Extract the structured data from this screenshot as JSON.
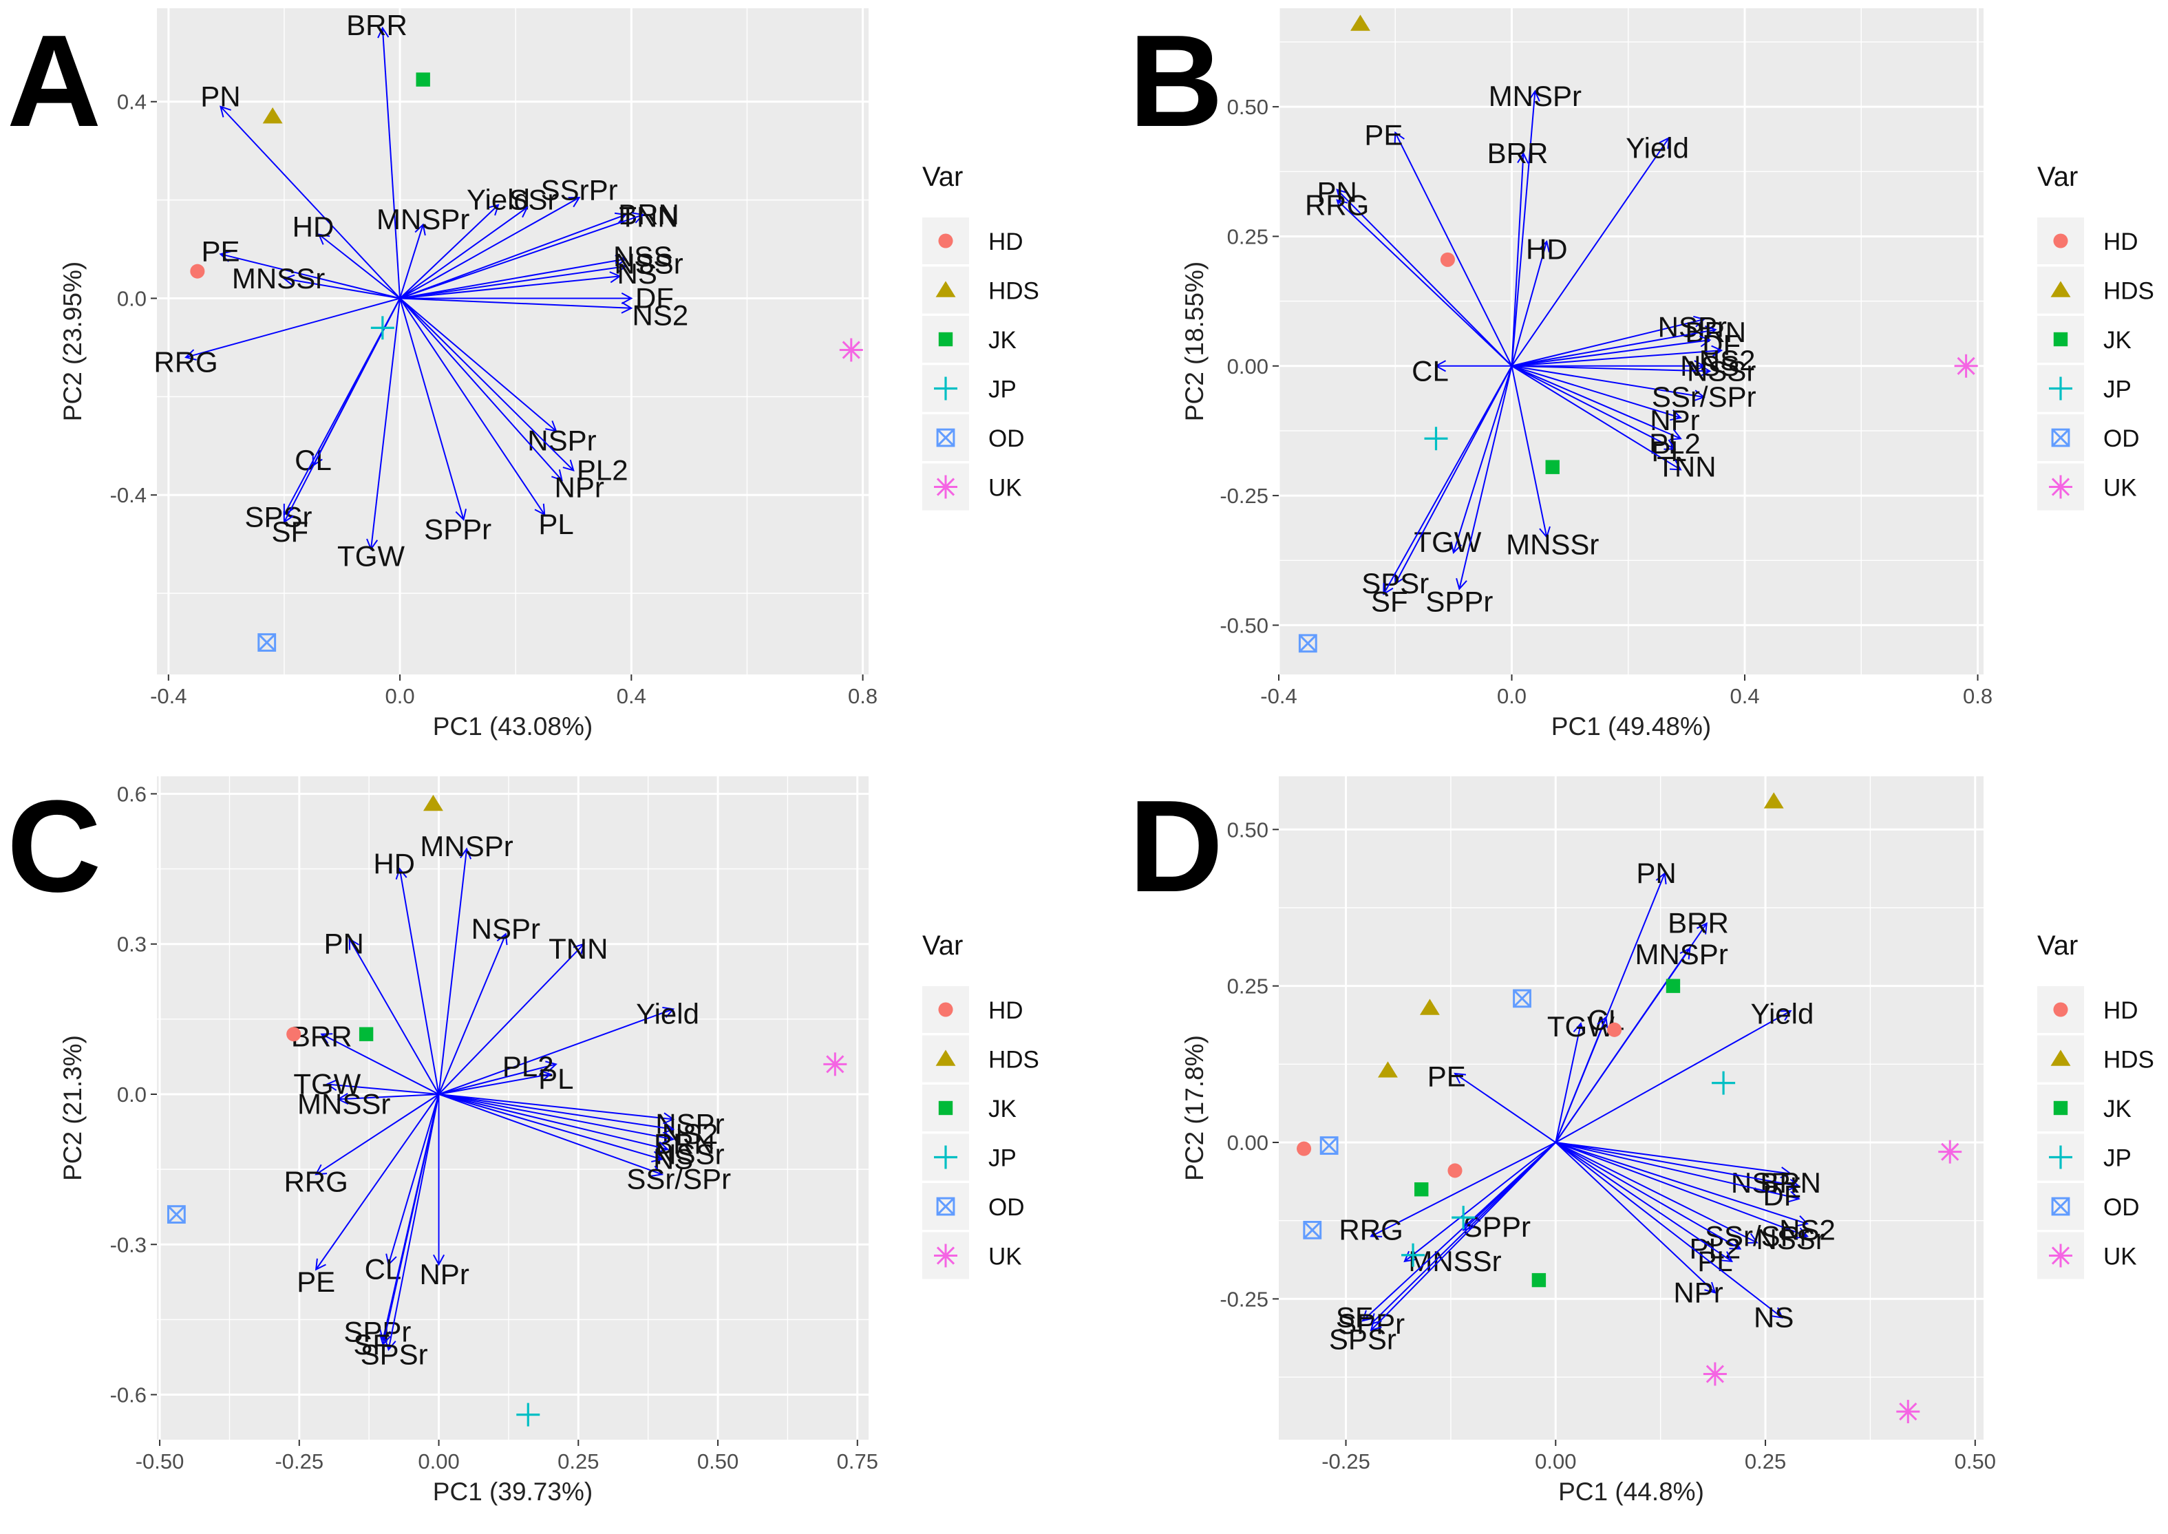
{
  "legend": {
    "title": "Var",
    "groups": [
      "HD",
      "HDS",
      "JK",
      "JP",
      "OD",
      "UK"
    ],
    "colors": {
      "HD": "#F8766D",
      "HDS": "#B79F00",
      "JK": "#00BA38",
      "JP": "#00BFC4",
      "OD": "#619CFF",
      "UK": "#F564E3"
    },
    "shapes": {
      "HD": "circle",
      "HDS": "triangle",
      "JK": "square",
      "JP": "plus",
      "OD": "boxed-x",
      "UK": "asterisk"
    }
  },
  "arrow_color": "#0000FF",
  "chart_data": [
    {
      "panel": "A",
      "type": "scatter",
      "subtype": "pca-biplot",
      "xlabel": "PC1 (43.08%)",
      "ylabel": "PC2 (23.95%)",
      "xlim": [
        -0.42,
        0.81
      ],
      "ylim": [
        -0.765,
        0.59
      ],
      "xticks": [
        -0.4,
        0.0,
        0.4,
        0.8
      ],
      "yticks": [
        -0.4,
        0.0,
        0.4
      ],
      "xtick_labels": [
        "-0.4",
        "0.0",
        "0.4",
        "0.8"
      ],
      "ytick_labels": [
        "-0.4",
        "0.0",
        "0.4"
      ],
      "grid": true,
      "legend_position": "right",
      "points": [
        {
          "group": "HD",
          "x": -0.35,
          "y": 0.055
        },
        {
          "group": "HDS",
          "x": -0.22,
          "y": 0.37
        },
        {
          "group": "JK",
          "x": 0.04,
          "y": 0.445
        },
        {
          "group": "JP",
          "x": -0.03,
          "y": -0.06
        },
        {
          "group": "OD",
          "x": -0.23,
          "y": -0.7
        },
        {
          "group": "UK",
          "x": 0.78,
          "y": -0.105
        }
      ],
      "arrows": [
        {
          "label": "BRR",
          "x": -0.03,
          "y": 0.55,
          "lx": -0.04,
          "ly": 0.555
        },
        {
          "label": "PN",
          "x": -0.31,
          "y": 0.39,
          "lx": -0.31,
          "ly": 0.41
        },
        {
          "label": "HD",
          "x": -0.14,
          "y": 0.13,
          "lx": -0.15,
          "ly": 0.145
        },
        {
          "label": "PE",
          "x": -0.31,
          "y": 0.09,
          "lx": -0.31,
          "ly": 0.095
        },
        {
          "label": "MNSSr",
          "x": -0.2,
          "y": 0.04,
          "lx": -0.21,
          "ly": 0.04
        },
        {
          "label": "RRG",
          "x": -0.37,
          "y": -0.12,
          "lx": -0.37,
          "ly": -0.13
        },
        {
          "label": "MNSPr",
          "x": 0.04,
          "y": 0.15,
          "lx": 0.04,
          "ly": 0.16
        },
        {
          "label": "Yield",
          "x": 0.17,
          "y": 0.19,
          "lx": 0.17,
          "ly": 0.2
        },
        {
          "label": "SSr",
          "x": 0.22,
          "y": 0.185,
          "lx": 0.23,
          "ly": 0.2
        },
        {
          "label": "SSrPr",
          "x": 0.31,
          "y": 0.205,
          "lx": 0.31,
          "ly": 0.22
        },
        {
          "label": "BRN",
          "x": 0.39,
          "y": 0.17,
          "lx": 0.43,
          "ly": 0.17
        },
        {
          "label": "TNN",
          "x": 0.42,
          "y": 0.17,
          "lx": 0.43,
          "ly": 0.165
        },
        {
          "label": "NSS",
          "x": 0.39,
          "y": 0.08,
          "lx": 0.42,
          "ly": 0.085
        },
        {
          "label": "NSSr",
          "x": 0.39,
          "y": 0.065,
          "lx": 0.43,
          "ly": 0.07
        },
        {
          "label": "NS",
          "x": 0.38,
          "y": 0.045,
          "lx": 0.41,
          "ly": 0.05
        },
        {
          "label": "DF",
          "x": 0.4,
          "y": 0.0,
          "lx": 0.44,
          "ly": 0.0
        },
        {
          "label": "NS2",
          "x": 0.4,
          "y": -0.02,
          "lx": 0.45,
          "ly": -0.035
        },
        {
          "label": "NSPr",
          "x": 0.27,
          "y": -0.27,
          "lx": 0.28,
          "ly": -0.29
        },
        {
          "label": "PL2",
          "x": 0.3,
          "y": -0.35,
          "lx": 0.35,
          "ly": -0.35
        },
        {
          "label": "NPr",
          "x": 0.28,
          "y": -0.37,
          "lx": 0.31,
          "ly": -0.385
        },
        {
          "label": "PL",
          "x": 0.25,
          "y": -0.44,
          "lx": 0.27,
          "ly": -0.46
        },
        {
          "label": "SPPr",
          "x": 0.11,
          "y": -0.45,
          "lx": 0.1,
          "ly": -0.47
        },
        {
          "label": "TGW",
          "x": -0.05,
          "y": -0.51,
          "lx": -0.05,
          "ly": -0.525
        },
        {
          "label": "CL",
          "x": -0.15,
          "y": -0.34,
          "lx": -0.15,
          "ly": -0.33
        },
        {
          "label": "SPSr",
          "x": -0.2,
          "y": -0.44,
          "lx": -0.21,
          "ly": -0.445
        },
        {
          "label": "SF",
          "x": -0.2,
          "y": -0.455,
          "lx": -0.19,
          "ly": -0.475
        }
      ]
    },
    {
      "panel": "B",
      "type": "scatter",
      "subtype": "pca-biplot",
      "xlabel": "PC1 (49.48%)",
      "ylabel": "PC2 (18.55%)",
      "xlim": [
        -0.4,
        0.81
      ],
      "ylim": [
        -0.595,
        0.69
      ],
      "xticks": [
        -0.4,
        0.0,
        0.4,
        0.8
      ],
      "yticks": [
        -0.5,
        -0.25,
        0.0,
        0.25,
        0.5
      ],
      "xtick_labels": [
        "-0.4",
        "0.0",
        "0.4",
        "0.8"
      ],
      "ytick_labels": [
        "-0.50",
        "-0.25",
        "0.00",
        "0.25",
        "0.50"
      ],
      "grid": true,
      "legend_position": "right",
      "points": [
        {
          "group": "HD",
          "x": -0.11,
          "y": 0.205
        },
        {
          "group": "HDS",
          "x": -0.26,
          "y": 0.66
        },
        {
          "group": "JK",
          "x": 0.07,
          "y": -0.195
        },
        {
          "group": "JP",
          "x": -0.13,
          "y": -0.14
        },
        {
          "group": "OD",
          "x": -0.35,
          "y": -0.535
        },
        {
          "group": "UK",
          "x": 0.78,
          "y": 0.0
        }
      ],
      "arrows": [
        {
          "label": "MNSPr",
          "x": 0.04,
          "y": 0.53,
          "lx": 0.04,
          "ly": 0.52
        },
        {
          "label": "PE",
          "x": -0.2,
          "y": 0.45,
          "lx": -0.22,
          "ly": 0.445
        },
        {
          "label": "BRR",
          "x": 0.02,
          "y": 0.41,
          "lx": 0.01,
          "ly": 0.41
        },
        {
          "label": "Yield",
          "x": 0.27,
          "y": 0.44,
          "lx": 0.25,
          "ly": 0.42
        },
        {
          "label": "PN",
          "x": -0.3,
          "y": 0.34,
          "lx": -0.3,
          "ly": 0.335
        },
        {
          "label": "RRG",
          "x": -0.3,
          "y": 0.32,
          "lx": -0.3,
          "ly": 0.31
        },
        {
          "label": "HD",
          "x": 0.06,
          "y": 0.24,
          "lx": 0.06,
          "ly": 0.225
        },
        {
          "label": "CL",
          "x": -0.13,
          "y": 0.0,
          "lx": -0.14,
          "ly": -0.01
        },
        {
          "label": "NSPr",
          "x": 0.33,
          "y": 0.09,
          "lx": 0.31,
          "ly": 0.075
        },
        {
          "label": "BRN",
          "x": 0.35,
          "y": 0.07,
          "lx": 0.35,
          "ly": 0.065
        },
        {
          "label": "DF",
          "x": 0.34,
          "y": 0.05,
          "lx": 0.36,
          "ly": 0.04
        },
        {
          "label": "NS2",
          "x": 0.36,
          "y": 0.03,
          "lx": 0.37,
          "ly": 0.01
        },
        {
          "label": "NSS",
          "x": 0.33,
          "y": 0.0,
          "lx": 0.34,
          "ly": 0.0
        },
        {
          "label": "NSSr",
          "x": 0.34,
          "y": -0.01,
          "lx": 0.36,
          "ly": -0.01
        },
        {
          "label": "SSr/SPr",
          "x": 0.33,
          "y": -0.06,
          "lx": 0.33,
          "ly": -0.06
        },
        {
          "label": "NPr",
          "x": 0.29,
          "y": -0.1,
          "lx": 0.28,
          "ly": -0.105
        },
        {
          "label": "PL2",
          "x": 0.29,
          "y": -0.14,
          "lx": 0.28,
          "ly": -0.15
        },
        {
          "label": "PL",
          "x": 0.28,
          "y": -0.16,
          "lx": 0.27,
          "ly": -0.165
        },
        {
          "label": "TNN",
          "x": 0.29,
          "y": -0.2,
          "lx": 0.3,
          "ly": -0.195
        },
        {
          "label": "MNSSr",
          "x": 0.06,
          "y": -0.33,
          "lx": 0.07,
          "ly": -0.345
        },
        {
          "label": "TGW",
          "x": -0.1,
          "y": -0.36,
          "lx": -0.11,
          "ly": -0.34
        },
        {
          "label": "SPSr",
          "x": -0.2,
          "y": -0.42,
          "lx": -0.2,
          "ly": -0.42
        },
        {
          "label": "SF",
          "x": -0.22,
          "y": -0.44,
          "lx": -0.21,
          "ly": -0.455
        },
        {
          "label": "SPPr",
          "x": -0.09,
          "y": -0.43,
          "lx": -0.09,
          "ly": -0.455
        }
      ]
    },
    {
      "panel": "C",
      "type": "scatter",
      "subtype": "pca-biplot",
      "xlabel": "PC1 (39.73%)",
      "ylabel": "PC2 (21.3%)",
      "xlim": [
        -0.505,
        0.77
      ],
      "ylim": [
        -0.69,
        0.635
      ],
      "xticks": [
        -0.5,
        -0.25,
        0.0,
        0.25,
        0.5,
        0.75
      ],
      "yticks": [
        -0.6,
        -0.3,
        0.0,
        0.3,
        0.6
      ],
      "xtick_labels": [
        "-0.50",
        "-0.25",
        "0.00",
        "0.25",
        "0.50",
        "0.75"
      ],
      "ytick_labels": [
        "-0.6",
        "-0.3",
        "0.0",
        "0.3",
        "0.6"
      ],
      "grid": true,
      "legend_position": "right",
      "points": [
        {
          "group": "HD",
          "x": -0.26,
          "y": 0.12
        },
        {
          "group": "HDS",
          "x": -0.01,
          "y": 0.58
        },
        {
          "group": "JK",
          "x": -0.13,
          "y": 0.12
        },
        {
          "group": "JP",
          "x": 0.16,
          "y": -0.64
        },
        {
          "group": "OD",
          "x": -0.47,
          "y": -0.24
        },
        {
          "group": "UK",
          "x": 0.71,
          "y": 0.06
        }
      ],
      "arrows": [
        {
          "label": "MNSPr",
          "x": 0.05,
          "y": 0.49,
          "lx": 0.05,
          "ly": 0.495
        },
        {
          "label": "HD",
          "x": -0.07,
          "y": 0.45,
          "lx": -0.08,
          "ly": 0.46
        },
        {
          "label": "NSPr",
          "x": 0.12,
          "y": 0.32,
          "lx": 0.12,
          "ly": 0.33
        },
        {
          "label": "TNN",
          "x": 0.26,
          "y": 0.3,
          "lx": 0.25,
          "ly": 0.29
        },
        {
          "label": "PN",
          "x": -0.16,
          "y": 0.31,
          "lx": -0.17,
          "ly": 0.3
        },
        {
          "label": "Yield",
          "x": 0.42,
          "y": 0.17,
          "lx": 0.41,
          "ly": 0.16
        },
        {
          "label": "BRR",
          "x": -0.21,
          "y": 0.12,
          "lx": -0.21,
          "ly": 0.115
        },
        {
          "label": "PL2",
          "x": 0.21,
          "y": 0.06,
          "lx": 0.16,
          "ly": 0.055
        },
        {
          "label": "PL",
          "x": 0.2,
          "y": 0.04,
          "lx": 0.21,
          "ly": 0.03
        },
        {
          "label": "TGW",
          "x": -0.2,
          "y": 0.02,
          "lx": -0.2,
          "ly": 0.02
        },
        {
          "label": "MNSSr",
          "x": -0.18,
          "y": -0.01,
          "lx": -0.17,
          "ly": -0.02
        },
        {
          "label": "NSPr",
          "x": 0.42,
          "y": -0.05,
          "lx": 0.45,
          "ly": -0.06
        },
        {
          "label": "NS2",
          "x": 0.42,
          "y": -0.07,
          "lx": 0.45,
          "ly": -0.08
        },
        {
          "label": "BRN",
          "x": 0.42,
          "y": -0.09,
          "lx": 0.44,
          "ly": -0.1
        },
        {
          "label": "NSSr",
          "x": 0.41,
          "y": -0.11,
          "lx": 0.45,
          "ly": -0.12
        },
        {
          "label": "NS",
          "x": 0.4,
          "y": -0.13,
          "lx": 0.42,
          "ly": -0.13
        },
        {
          "label": "SSr/SPr",
          "x": 0.4,
          "y": -0.16,
          "lx": 0.43,
          "ly": -0.17
        },
        {
          "label": "RRG",
          "x": -0.22,
          "y": -0.16,
          "lx": -0.22,
          "ly": -0.175
        },
        {
          "label": "PE",
          "x": -0.22,
          "y": -0.35,
          "lx": -0.22,
          "ly": -0.375
        },
        {
          "label": "CL",
          "x": -0.09,
          "y": -0.34,
          "lx": -0.1,
          "ly": -0.35
        },
        {
          "label": "NPr",
          "x": 0.0,
          "y": -0.34,
          "lx": 0.01,
          "ly": -0.36
        },
        {
          "label": "SPPr",
          "x": -0.1,
          "y": -0.49,
          "lx": -0.11,
          "ly": -0.475
        },
        {
          "label": "SF",
          "x": -0.1,
          "y": -0.5,
          "lx": -0.12,
          "ly": -0.5
        },
        {
          "label": "SPSr",
          "x": -0.09,
          "y": -0.51,
          "lx": -0.08,
          "ly": -0.52
        }
      ]
    },
    {
      "panel": "D",
      "type": "scatter",
      "subtype": "pca-biplot",
      "xlabel": "PC1 (44.8%)",
      "ylabel": "PC2 (17.8%)",
      "xlim": [
        -0.33,
        0.51
      ],
      "ylim": [
        -0.475,
        0.585
      ],
      "xticks": [
        -0.25,
        0.0,
        0.25,
        0.5
      ],
      "yticks": [
        -0.25,
        0.0,
        0.25,
        0.5
      ],
      "xtick_labels": [
        "-0.25",
        "0.00",
        "0.25",
        "0.50"
      ],
      "ytick_labels": [
        "-0.25",
        "0.00",
        "0.25",
        "0.50"
      ],
      "grid": true,
      "legend_position": "right",
      "points": [
        {
          "group": "HD",
          "x": -0.3,
          "y": -0.01
        },
        {
          "group": "HD",
          "x": -0.12,
          "y": -0.045
        },
        {
          "group": "HD",
          "x": 0.07,
          "y": 0.18
        },
        {
          "group": "HDS",
          "x": 0.26,
          "y": 0.545
        },
        {
          "group": "HDS",
          "x": -0.15,
          "y": 0.215
        },
        {
          "group": "HDS",
          "x": -0.2,
          "y": 0.115
        },
        {
          "group": "JK",
          "x": 0.14,
          "y": 0.25
        },
        {
          "group": "JK",
          "x": -0.16,
          "y": -0.075
        },
        {
          "group": "JK",
          "x": -0.02,
          "y": -0.22
        },
        {
          "group": "JP",
          "x": 0.2,
          "y": 0.095
        },
        {
          "group": "JP",
          "x": -0.11,
          "y": -0.12
        },
        {
          "group": "JP",
          "x": -0.17,
          "y": -0.18
        },
        {
          "group": "OD",
          "x": -0.27,
          "y": -0.005
        },
        {
          "group": "OD",
          "x": -0.29,
          "y": -0.14
        },
        {
          "group": "OD",
          "x": -0.04,
          "y": 0.23
        },
        {
          "group": "UK",
          "x": 0.47,
          "y": -0.015
        },
        {
          "group": "UK",
          "x": 0.42,
          "y": -0.43
        },
        {
          "group": "UK",
          "x": 0.19,
          "y": -0.37
        }
      ],
      "arrows": [
        {
          "label": "PN",
          "x": 0.13,
          "y": 0.43,
          "lx": 0.12,
          "ly": 0.43
        },
        {
          "label": "BRR",
          "x": 0.18,
          "y": 0.35,
          "lx": 0.17,
          "ly": 0.35
        },
        {
          "label": "MNSPr",
          "x": 0.16,
          "y": 0.31,
          "lx": 0.15,
          "ly": 0.3
        },
        {
          "label": "Yield",
          "x": 0.28,
          "y": 0.21,
          "lx": 0.27,
          "ly": 0.205
        },
        {
          "label": "TGW",
          "x": 0.03,
          "y": 0.19,
          "lx": 0.03,
          "ly": 0.185
        },
        {
          "label": "CL",
          "x": 0.06,
          "y": 0.2,
          "lx": 0.06,
          "ly": 0.195
        },
        {
          "label": "PE",
          "x": -0.12,
          "y": 0.11,
          "lx": -0.13,
          "ly": 0.105
        },
        {
          "label": "NSPr",
          "x": 0.28,
          "y": -0.05,
          "lx": 0.25,
          "ly": -0.065
        },
        {
          "label": "BRN",
          "x": 0.29,
          "y": -0.07,
          "lx": 0.28,
          "ly": -0.065
        },
        {
          "label": "DF",
          "x": 0.29,
          "y": -0.09,
          "lx": 0.27,
          "ly": -0.085
        },
        {
          "label": "NS2",
          "x": 0.3,
          "y": -0.13,
          "lx": 0.3,
          "ly": -0.14
        },
        {
          "label": "NSSr",
          "x": 0.3,
          "y": -0.15,
          "lx": 0.28,
          "ly": -0.155
        },
        {
          "label": "SSr/SPr",
          "x": 0.24,
          "y": -0.16,
          "lx": 0.24,
          "ly": -0.15
        },
        {
          "label": "PL2",
          "x": 0.22,
          "y": -0.17,
          "lx": 0.19,
          "ly": -0.17
        },
        {
          "label": "PL",
          "x": 0.21,
          "y": -0.19,
          "lx": 0.19,
          "ly": -0.19
        },
        {
          "label": "NPr",
          "x": 0.19,
          "y": -0.24,
          "lx": 0.17,
          "ly": -0.24
        },
        {
          "label": "NS",
          "x": 0.27,
          "y": -0.28,
          "lx": 0.26,
          "ly": -0.28
        },
        {
          "label": "RRG",
          "x": -0.22,
          "y": -0.15,
          "lx": -0.22,
          "ly": -0.14
        },
        {
          "label": "SPPr",
          "x": -0.11,
          "y": -0.14,
          "lx": -0.07,
          "ly": -0.135
        },
        {
          "label": "MNSSr",
          "x": -0.18,
          "y": -0.19,
          "lx": -0.12,
          "ly": -0.19
        },
        {
          "label": "SF",
          "x": -0.23,
          "y": -0.285,
          "lx": -0.24,
          "ly": -0.28
        },
        {
          "label": "SPPr",
          "x": -0.22,
          "y": -0.29,
          "lx": -0.22,
          "ly": -0.29
        },
        {
          "label": "SPSr",
          "x": -0.22,
          "y": -0.3,
          "lx": -0.23,
          "ly": -0.315
        }
      ]
    }
  ]
}
